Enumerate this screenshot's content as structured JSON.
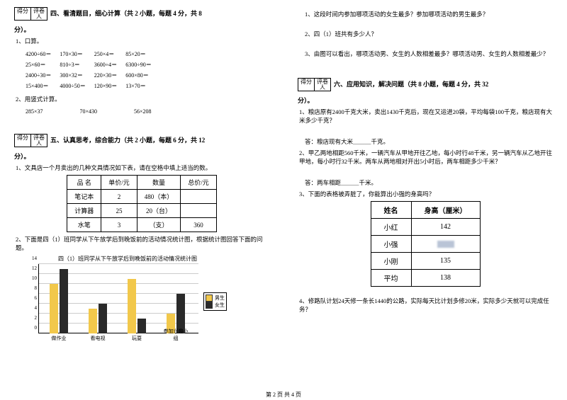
{
  "scoreBox": {
    "left": "得分",
    "right": "评卷人"
  },
  "section4": {
    "title": "四、看清题目，细心计算（共 2 小题，每题 4 分，共 8",
    "title2": "分）。",
    "q1": "1、口算。",
    "grid": [
      [
        "4200÷60＝",
        "170×30＝",
        "250×4＝",
        "85×20＝"
      ],
      [
        "25×60＝",
        "810÷3＝",
        "3600÷4＝",
        "6300÷90＝"
      ],
      [
        "2400÷30＝",
        "300×32＝",
        "220×30＝",
        "600×80＝"
      ],
      [
        "15×400＝",
        "4000÷50＝",
        "120×90＝",
        "13×70＝"
      ]
    ],
    "q2": "2、用竖式计算。",
    "row2": [
      "285×37",
      "70×430",
      "56×208"
    ]
  },
  "section5": {
    "title": "五、认真思考，综合能力（共 2 小题，每题 6 分，共 12",
    "title2": "分）。",
    "q1": "1、文具店一个月卖出的几种文具情况如下表，请在空格中填上适当的数。",
    "table": {
      "headers": [
        "品 名",
        "单价/元",
        "数量",
        "总价/元"
      ],
      "rows": [
        [
          "笔记本",
          "2",
          "480（本）",
          ""
        ],
        [
          "计算器",
          "25",
          "20（台）",
          ""
        ],
        [
          "水笔",
          "3",
          "（支）",
          "360"
        ]
      ]
    },
    "q2": "2、下面是四（1）班同学从下午放学后到晚饭前的活动情况统计图，根据统计图回答下面的问题。",
    "chart": {
      "title": "四（1）班同学从下午放学后到晚饭前的活动情况统计图",
      "ymax": 14,
      "ystep": 2,
      "categories": [
        "做作业",
        "看电视",
        "玩耍",
        "参加兴趣小组"
      ],
      "series": [
        {
          "label": "男生",
          "color": "#f2c84b",
          "values": [
            10,
            5,
            11,
            4
          ]
        },
        {
          "label": "女生",
          "color": "#2a2a2a",
          "values": [
            13,
            6,
            3,
            8
          ]
        }
      ],
      "grid_color": "#cccccc"
    }
  },
  "rightQs": {
    "q1": "1、这段时间内参加哪项活动的女生最多？参加哪项活动的男生最多？",
    "q2": "2、四（1）班共有多少人？",
    "q3": "3、由图可以看出，哪项活动男、女生的人数相差最多？哪项活动男、女生的人数相差最少？"
  },
  "section6": {
    "title": "六、应用知识，解决问题（共 8 小题，每题 4 分，共 32",
    "title2": "分）。",
    "q1": "1、粮店原有2400千克大米，卖出1430千克后，现在又运进20袋，平均每袋100千克，粮店现有大米多少千克？",
    "a1": "答：粮店现有大米＿＿＿千克。",
    "q2": "2、甲乙两地相距560千米，一辆汽车从甲地开往乙地，每小时行48千米，另一辆汽车从乙地开往甲地，每小时行32千米。两车从两地相对开出5小时后，两车相距多少千米？",
    "a2": "答：两车相距＿＿＿千米。",
    "q3": "3、下面的表格被弄脏了，你能算出小强的身高吗？",
    "table": {
      "headers": [
        "姓名",
        "身高（厘米）"
      ],
      "rows": [
        [
          "小红",
          "142"
        ],
        [
          "小强",
          "__SMUDGE__"
        ],
        [
          "小刚",
          "135"
        ],
        [
          "平均",
          "138"
        ]
      ]
    },
    "q4": "4、修路队计划24天修一条长1440的公路，实际每天比计划多修20米，实际多少天就可以完成任务？"
  },
  "footer": "第 2 页 共 4 页"
}
